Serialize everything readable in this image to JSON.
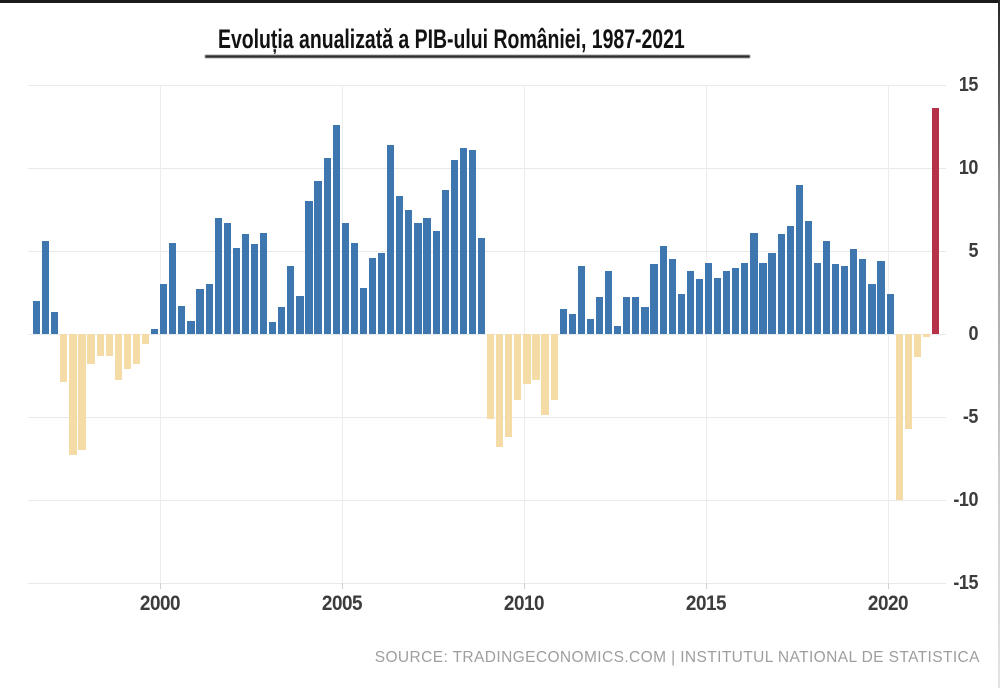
{
  "title": "Evoluția anualizată a PIB-ului României, 1987-2021",
  "source": "SOURCE: TRADINGECONOMICS.COM | INSTITUTUL NATIONAL DE STATISTICA",
  "chart_data": {
    "type": "bar",
    "title": "Evoluția anualizată a PIB-ului României, 1987-2021",
    "ylabel": "",
    "xlabel": "",
    "unit": "percent, year-over-year GDP growth",
    "frequency": "quarterly",
    "approx_period_shown": "1996-Q3 to 2021-Q2",
    "bar_count": 100,
    "ylim": [
      -15,
      15
    ],
    "y_axis_side": "right",
    "grid": true,
    "y_ticks": [
      {
        "label": "15",
        "value": 15
      },
      {
        "label": "10",
        "value": 10
      },
      {
        "label": "5",
        "value": 5
      },
      {
        "label": "0",
        "value": 0
      },
      {
        "label": "-5",
        "value": -5
      },
      {
        "label": "-10",
        "value": -10
      },
      {
        "label": "-15",
        "value": -15
      }
    ],
    "x_ticks": [
      {
        "label": "2000",
        "year": 2000
      },
      {
        "label": "2005",
        "year": 2005
      },
      {
        "label": "2010",
        "year": 2010
      },
      {
        "label": "2015",
        "year": 2015
      },
      {
        "label": "2020",
        "year": 2020
      }
    ],
    "values": [
      2.0,
      5.6,
      1.3,
      -2.9,
      -7.3,
      -7.0,
      -1.8,
      -1.3,
      -1.3,
      -2.8,
      -2.1,
      -1.8,
      -0.6,
      0.3,
      3.0,
      5.5,
      1.7,
      0.8,
      2.7,
      3.0,
      7.0,
      6.7,
      5.2,
      6.0,
      5.4,
      6.1,
      0.7,
      1.6,
      4.1,
      2.3,
      8.0,
      9.2,
      10.6,
      12.6,
      6.7,
      5.5,
      2.8,
      4.6,
      4.9,
      11.4,
      8.3,
      7.5,
      6.7,
      7.0,
      6.2,
      8.7,
      10.5,
      11.2,
      11.1,
      5.8,
      -5.1,
      -6.8,
      -6.2,
      -4.0,
      -3.0,
      -2.8,
      -4.9,
      -4.0,
      1.5,
      1.2,
      4.1,
      0.9,
      2.2,
      3.8,
      0.5,
      2.2,
      2.2,
      1.6,
      4.2,
      5.3,
      4.5,
      2.4,
      3.8,
      3.3,
      4.3,
      3.4,
      3.8,
      4.0,
      4.3,
      6.1,
      4.3,
      4.9,
      6.0,
      6.5,
      9.0,
      6.8,
      4.3,
      5.6,
      4.2,
      4.1,
      5.1,
      4.5,
      3.0,
      4.4,
      2.4,
      -10.0,
      -5.7,
      -1.4,
      -0.2,
      13.6
    ],
    "highlight_last_bar": true,
    "colors": {
      "positive": "#3e76af",
      "negative": "#f5dca6",
      "latest_highlight": "#b53249",
      "grid": "#e9e9e9",
      "axis_text": "#3c3c3c",
      "title_text": "#121212",
      "source_text": "#9e9e9e"
    },
    "legend": null
  }
}
